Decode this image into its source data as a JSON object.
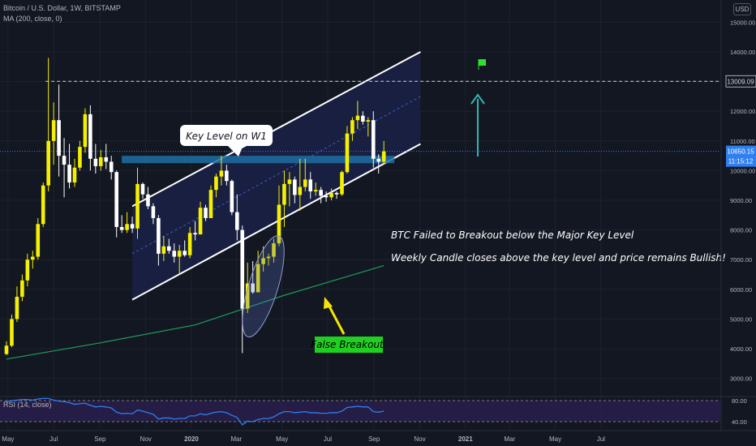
{
  "header": {
    "symbol_line": "Bitcoin / U.S. Dollar, 1W, BITSTAMP",
    "ma_line": "MA (200, close, 0)",
    "currency_button": "USD"
  },
  "price_axis": {
    "ticks": [
      "15000.00",
      "14000.00",
      "13009.09",
      "12000.00",
      "11000.00",
      "10650.15",
      "11:15:12",
      "10000.00",
      "9000.00",
      "8000.00",
      "7000.00",
      "6000.00",
      "5000.00",
      "4000.00",
      "3000.00"
    ]
  },
  "rsi": {
    "label": "RSI (14, close)",
    "ticks": [
      "80.00",
      "40.00"
    ]
  },
  "time_axis": {
    "labels": [
      "May",
      "Jul",
      "Sep",
      "Nov",
      "2020",
      "Mar",
      "May",
      "Jul",
      "Sep",
      "Nov",
      "2021",
      "Mar",
      "May",
      "Jul"
    ]
  },
  "annotations": {
    "key_level_callout": "Key Level on W1",
    "false_breakout": "False Breakout",
    "note_line1": "BTC Failed to Breakout below the Major Key Level",
    "note_line2": "Weekly Candle closes above the key level and price remains Bullish!"
  },
  "colors": {
    "background": "#131722",
    "candle_up": "#f5f000",
    "candle_down": "#ffffff",
    "ma_line": "#1f9e5a",
    "rsi_line": "#2f7ff0",
    "key_level_zone": "#1f6fa3",
    "arrow_up": "#2fb8b3",
    "false_breakout_label": "#20d020",
    "channel_fill": "#1a2147"
  },
  "chart_data": {
    "type": "candlestick",
    "interval": "1W",
    "x_dates": [
      "2019-04-29",
      "2019-05-06",
      "2019-05-13",
      "2019-05-20",
      "2019-05-27",
      "2019-06-03",
      "2019-06-10",
      "2019-06-17",
      "2019-06-24",
      "2019-07-01",
      "2019-07-08",
      "2019-07-15",
      "2019-07-22",
      "2019-07-29",
      "2019-08-05",
      "2019-08-12",
      "2019-08-19",
      "2019-08-26",
      "2019-09-02",
      "2019-09-09",
      "2019-09-16",
      "2019-09-23",
      "2019-09-30",
      "2019-10-07",
      "2019-10-14",
      "2019-10-21",
      "2019-10-28",
      "2019-11-04",
      "2019-11-11",
      "2019-11-18",
      "2019-11-25",
      "2019-12-02",
      "2019-12-09",
      "2019-12-16",
      "2019-12-23",
      "2019-12-30",
      "2020-01-06",
      "2020-01-13",
      "2020-01-20",
      "2020-01-27",
      "2020-02-03",
      "2020-02-10",
      "2020-02-17",
      "2020-02-24",
      "2020-03-02",
      "2020-03-09",
      "2020-03-16",
      "2020-03-23",
      "2020-03-30",
      "2020-04-06",
      "2020-04-13",
      "2020-04-20",
      "2020-04-27",
      "2020-05-04",
      "2020-05-11",
      "2020-05-18",
      "2020-05-25",
      "2020-06-01",
      "2020-06-08",
      "2020-06-15",
      "2020-06-22",
      "2020-06-29",
      "2020-07-06",
      "2020-07-13",
      "2020-07-20",
      "2020-07-27",
      "2020-08-03",
      "2020-08-10",
      "2020-08-17",
      "2020-08-24",
      "2020-08-31",
      "2020-09-07",
      "2020-09-14"
    ],
    "ohlc": [
      [
        3820,
        4250,
        3780,
        4100
      ],
      [
        4100,
        5150,
        4050,
        5000
      ],
      [
        5000,
        6100,
        4900,
        5750
      ],
      [
        5750,
        6500,
        5600,
        6300
      ],
      [
        6300,
        7200,
        6100,
        7000
      ],
      [
        7000,
        7300,
        6700,
        7100
      ],
      [
        7100,
        8400,
        7000,
        8200
      ],
      [
        8200,
        9600,
        8100,
        9500
      ],
      [
        9500,
        13800,
        9300,
        11000
      ],
      [
        11000,
        12300,
        10200,
        11700
      ],
      [
        11700,
        12900,
        9800,
        10500
      ],
      [
        10500,
        11100,
        9100,
        10200
      ],
      [
        10200,
        10900,
        9400,
        9600
      ],
      [
        9600,
        10400,
        9450,
        10100
      ],
      [
        10100,
        11000,
        10000,
        10800
      ],
      [
        10800,
        12100,
        10600,
        11900
      ],
      [
        11900,
        12200,
        10000,
        10400
      ],
      [
        10400,
        10900,
        9900,
        10150
      ],
      [
        10150,
        10700,
        10000,
        10450
      ],
      [
        10450,
        10900,
        10050,
        10300
      ],
      [
        10300,
        10500,
        9700,
        9950
      ],
      [
        9950,
        10000,
        7750,
        8100
      ],
      [
        8100,
        8500,
        7900,
        8000
      ],
      [
        8000,
        8600,
        7900,
        8200
      ],
      [
        8200,
        8450,
        7900,
        8050
      ],
      [
        8050,
        10100,
        7700,
        9550
      ],
      [
        9550,
        9600,
        9050,
        9200
      ],
      [
        9200,
        9450,
        8700,
        8800
      ],
      [
        8800,
        8900,
        8200,
        8400
      ],
      [
        8400,
        8500,
        6800,
        7200
      ],
      [
        7200,
        7800,
        6950,
        7450
      ],
      [
        7450,
        7700,
        7200,
        7300
      ],
      [
        7300,
        7550,
        6900,
        7100
      ],
      [
        7100,
        7500,
        6500,
        7300
      ],
      [
        7300,
        7650,
        7100,
        7150
      ],
      [
        7150,
        8100,
        7050,
        7900
      ],
      [
        7900,
        8300,
        7650,
        7850
      ],
      [
        7850,
        8950,
        7850,
        8750
      ],
      [
        8750,
        8850,
        8300,
        8400
      ],
      [
        8400,
        9500,
        8400,
        9350
      ],
      [
        9350,
        9900,
        9100,
        9800
      ],
      [
        9800,
        10500,
        9500,
        10000
      ],
      [
        10000,
        10200,
        9500,
        9650
      ],
      [
        9650,
        9700,
        8500,
        8600
      ],
      [
        8600,
        9200,
        7650,
        8000
      ],
      [
        8000,
        8150,
        3850,
        5350
      ],
      [
        5350,
        6900,
        5200,
        6200
      ],
      [
        6200,
        6950,
        5850,
        5900
      ],
      [
        5900,
        7300,
        5900,
        6850
      ],
      [
        6850,
        7450,
        6600,
        7050
      ],
      [
        7050,
        7200,
        6800,
        7100
      ],
      [
        7100,
        7700,
        6900,
        7550
      ],
      [
        7550,
        9500,
        7450,
        8850
      ],
      [
        8850,
        10000,
        8100,
        9550
      ],
      [
        9550,
        9950,
        8800,
        9700
      ],
      [
        9700,
        9800,
        8900,
        9180
      ],
      [
        9180,
        10400,
        8650,
        9450
      ],
      [
        9450,
        10400,
        9300,
        9700
      ],
      [
        9700,
        9950,
        9050,
        9300
      ],
      [
        9300,
        9600,
        9150,
        9350
      ],
      [
        9350,
        9450,
        8900,
        9150
      ],
      [
        9150,
        9300,
        8950,
        9100
      ],
      [
        9100,
        9400,
        9000,
        9250
      ],
      [
        9250,
        9300,
        9050,
        9200
      ],
      [
        9200,
        10000,
        9150,
        9950
      ],
      [
        9950,
        11500,
        9900,
        11250
      ],
      [
        11250,
        11800,
        11000,
        11700
      ],
      [
        11700,
        12350,
        11400,
        11850
      ],
      [
        11850,
        12000,
        11550,
        11650
      ],
      [
        11650,
        11800,
        11150,
        11700
      ],
      [
        11700,
        12000,
        10100,
        10400
      ],
      [
        10400,
        10550,
        9900,
        10300
      ],
      [
        10300,
        11000,
        10200,
        10650
      ]
    ],
    "moving_average": {
      "name": "MA (200, close, 0)",
      "points": [
        [
          "2019-04-29",
          3650
        ],
        [
          "2019-09-02",
          4200
        ],
        [
          "2020-01-06",
          4800
        ],
        [
          "2020-05-04",
          5800
        ],
        [
          "2020-09-14",
          6800
        ]
      ]
    },
    "key_level_zone": {
      "label": "Key Level on W1",
      "from": 10250,
      "to": 10500,
      "start": "2019-09-30",
      "end": "2020-09-28"
    },
    "channel": {
      "upper": [
        [
          "2019-10-14",
          8800
        ],
        [
          "2020-11-02",
          14000
        ]
      ],
      "lower": [
        [
          "2019-10-14",
          5650
        ],
        [
          "2020-11-02",
          10900
        ]
      ],
      "mid": [
        [
          "2019-10-14",
          7200
        ],
        [
          "2020-11-02",
          12500
        ]
      ]
    },
    "false_breakout_window": [
      "2020-03-09",
      "2020-05-04"
    ],
    "horizontal_line": 13009.09,
    "last_price": 10650.15,
    "time_to_close": "11:15:12",
    "ylim": [
      2600,
      16300
    ],
    "rsi": {
      "name": "RSI (14, close)",
      "levels": [
        80,
        40
      ],
      "values": [
        78,
        80,
        81,
        82,
        82,
        81,
        83,
        84,
        84,
        81,
        79,
        78,
        76,
        73,
        74,
        75,
        71,
        68,
        69,
        68,
        66,
        58,
        55,
        56,
        55,
        62,
        60,
        57,
        54,
        45,
        47,
        47,
        45,
        46,
        46,
        51,
        51,
        55,
        53,
        56,
        58,
        59,
        57,
        52,
        48,
        34,
        41,
        40,
        44,
        46,
        46,
        49,
        55,
        59,
        59,
        57,
        58,
        59,
        57,
        57,
        56,
        56,
        57,
        57,
        60,
        67,
        68,
        69,
        68,
        68,
        59,
        58,
        60
      ]
    },
    "x_axis_labels": [
      "May",
      "Jul",
      "Sep",
      "Nov",
      "2020",
      "Mar",
      "May",
      "Jul",
      "Sep",
      "Nov",
      "2021",
      "Mar",
      "May",
      "Jul"
    ],
    "y_axis_ticks": [
      3000,
      4000,
      5000,
      6000,
      7000,
      8000,
      9000,
      10000,
      11000,
      12000,
      13000,
      14000,
      15000
    ]
  }
}
